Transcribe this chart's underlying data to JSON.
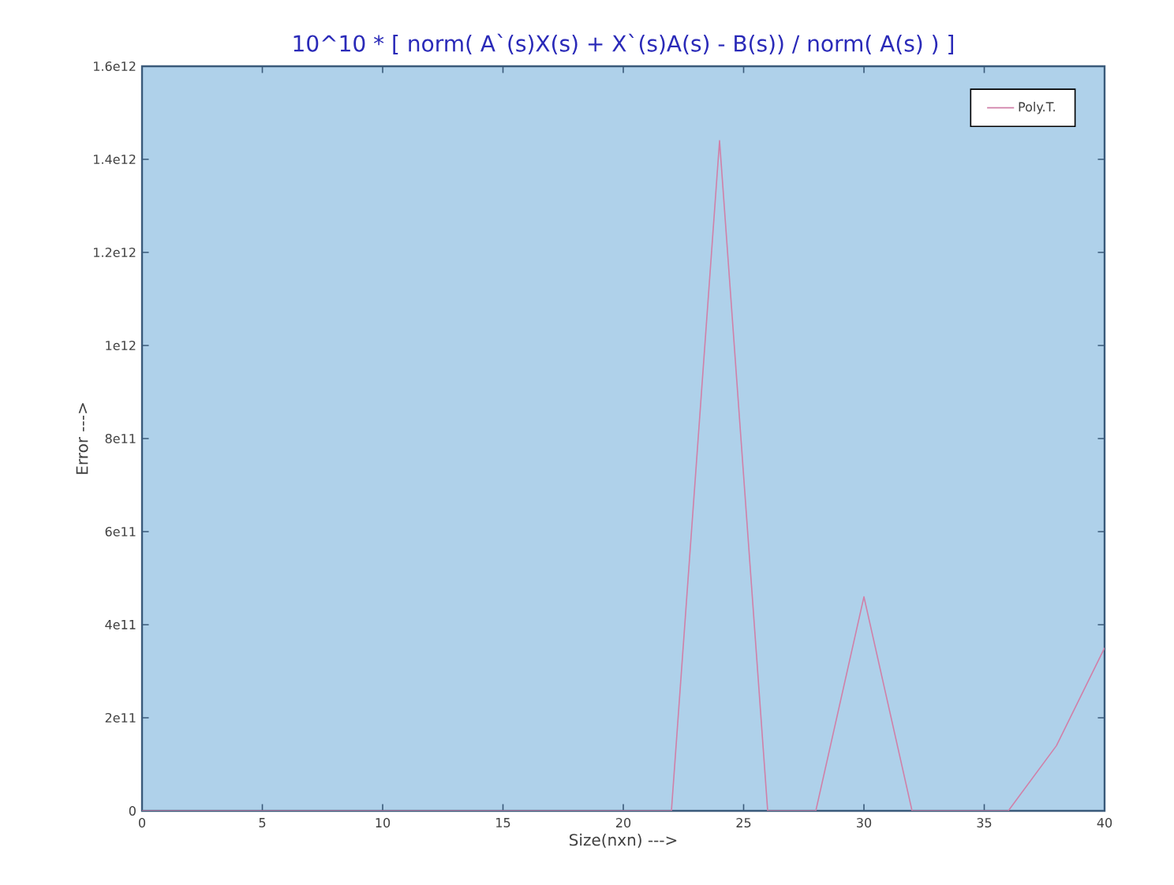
{
  "chart_data": {
    "type": "line",
    "title": "10^10 * [ norm( A`(s)X(s) + X`(s)A(s) - B(s)) / norm( A(s) ) ]",
    "xlabel": "Size(nxn) --->",
    "ylabel": "Error --->",
    "x": [
      0,
      2,
      4,
      6,
      8,
      10,
      12,
      14,
      16,
      18,
      20,
      22,
      24,
      26,
      28,
      30,
      32,
      34,
      36,
      38,
      40
    ],
    "series": [
      {
        "name": "Poly.T.",
        "color": "#d080a8",
        "values": [
          0,
          0,
          0,
          0,
          0,
          0,
          0,
          0,
          0,
          0,
          0,
          0,
          1440000000000.0,
          0,
          0,
          460000000000.0,
          0,
          0,
          0,
          140000000000.0,
          350000000000.0
        ]
      }
    ],
    "xlim": [
      0,
      40
    ],
    "ylim": [
      0,
      1600000000000.0
    ],
    "xticks": [
      0,
      5,
      10,
      15,
      20,
      25,
      30,
      35,
      40
    ],
    "yticks": [
      0,
      {
        "value": 200000000000.0,
        "label": "2e11"
      },
      {
        "value": 400000000000.0,
        "label": "4e11"
      },
      {
        "value": 600000000000.0,
        "label": "6e11"
      },
      {
        "value": 800000000000.0,
        "label": "8e11"
      },
      {
        "value": 1000000000000.0,
        "label": "1e12"
      },
      {
        "value": 1200000000000.0,
        "label": "1.2e12"
      },
      {
        "value": 1400000000000.0,
        "label": "1.4e12"
      },
      {
        "value": 1600000000000.0,
        "label": "1.6e12"
      }
    ],
    "grid": false,
    "legend": "top right",
    "marker": "none",
    "line_style": "solid"
  }
}
